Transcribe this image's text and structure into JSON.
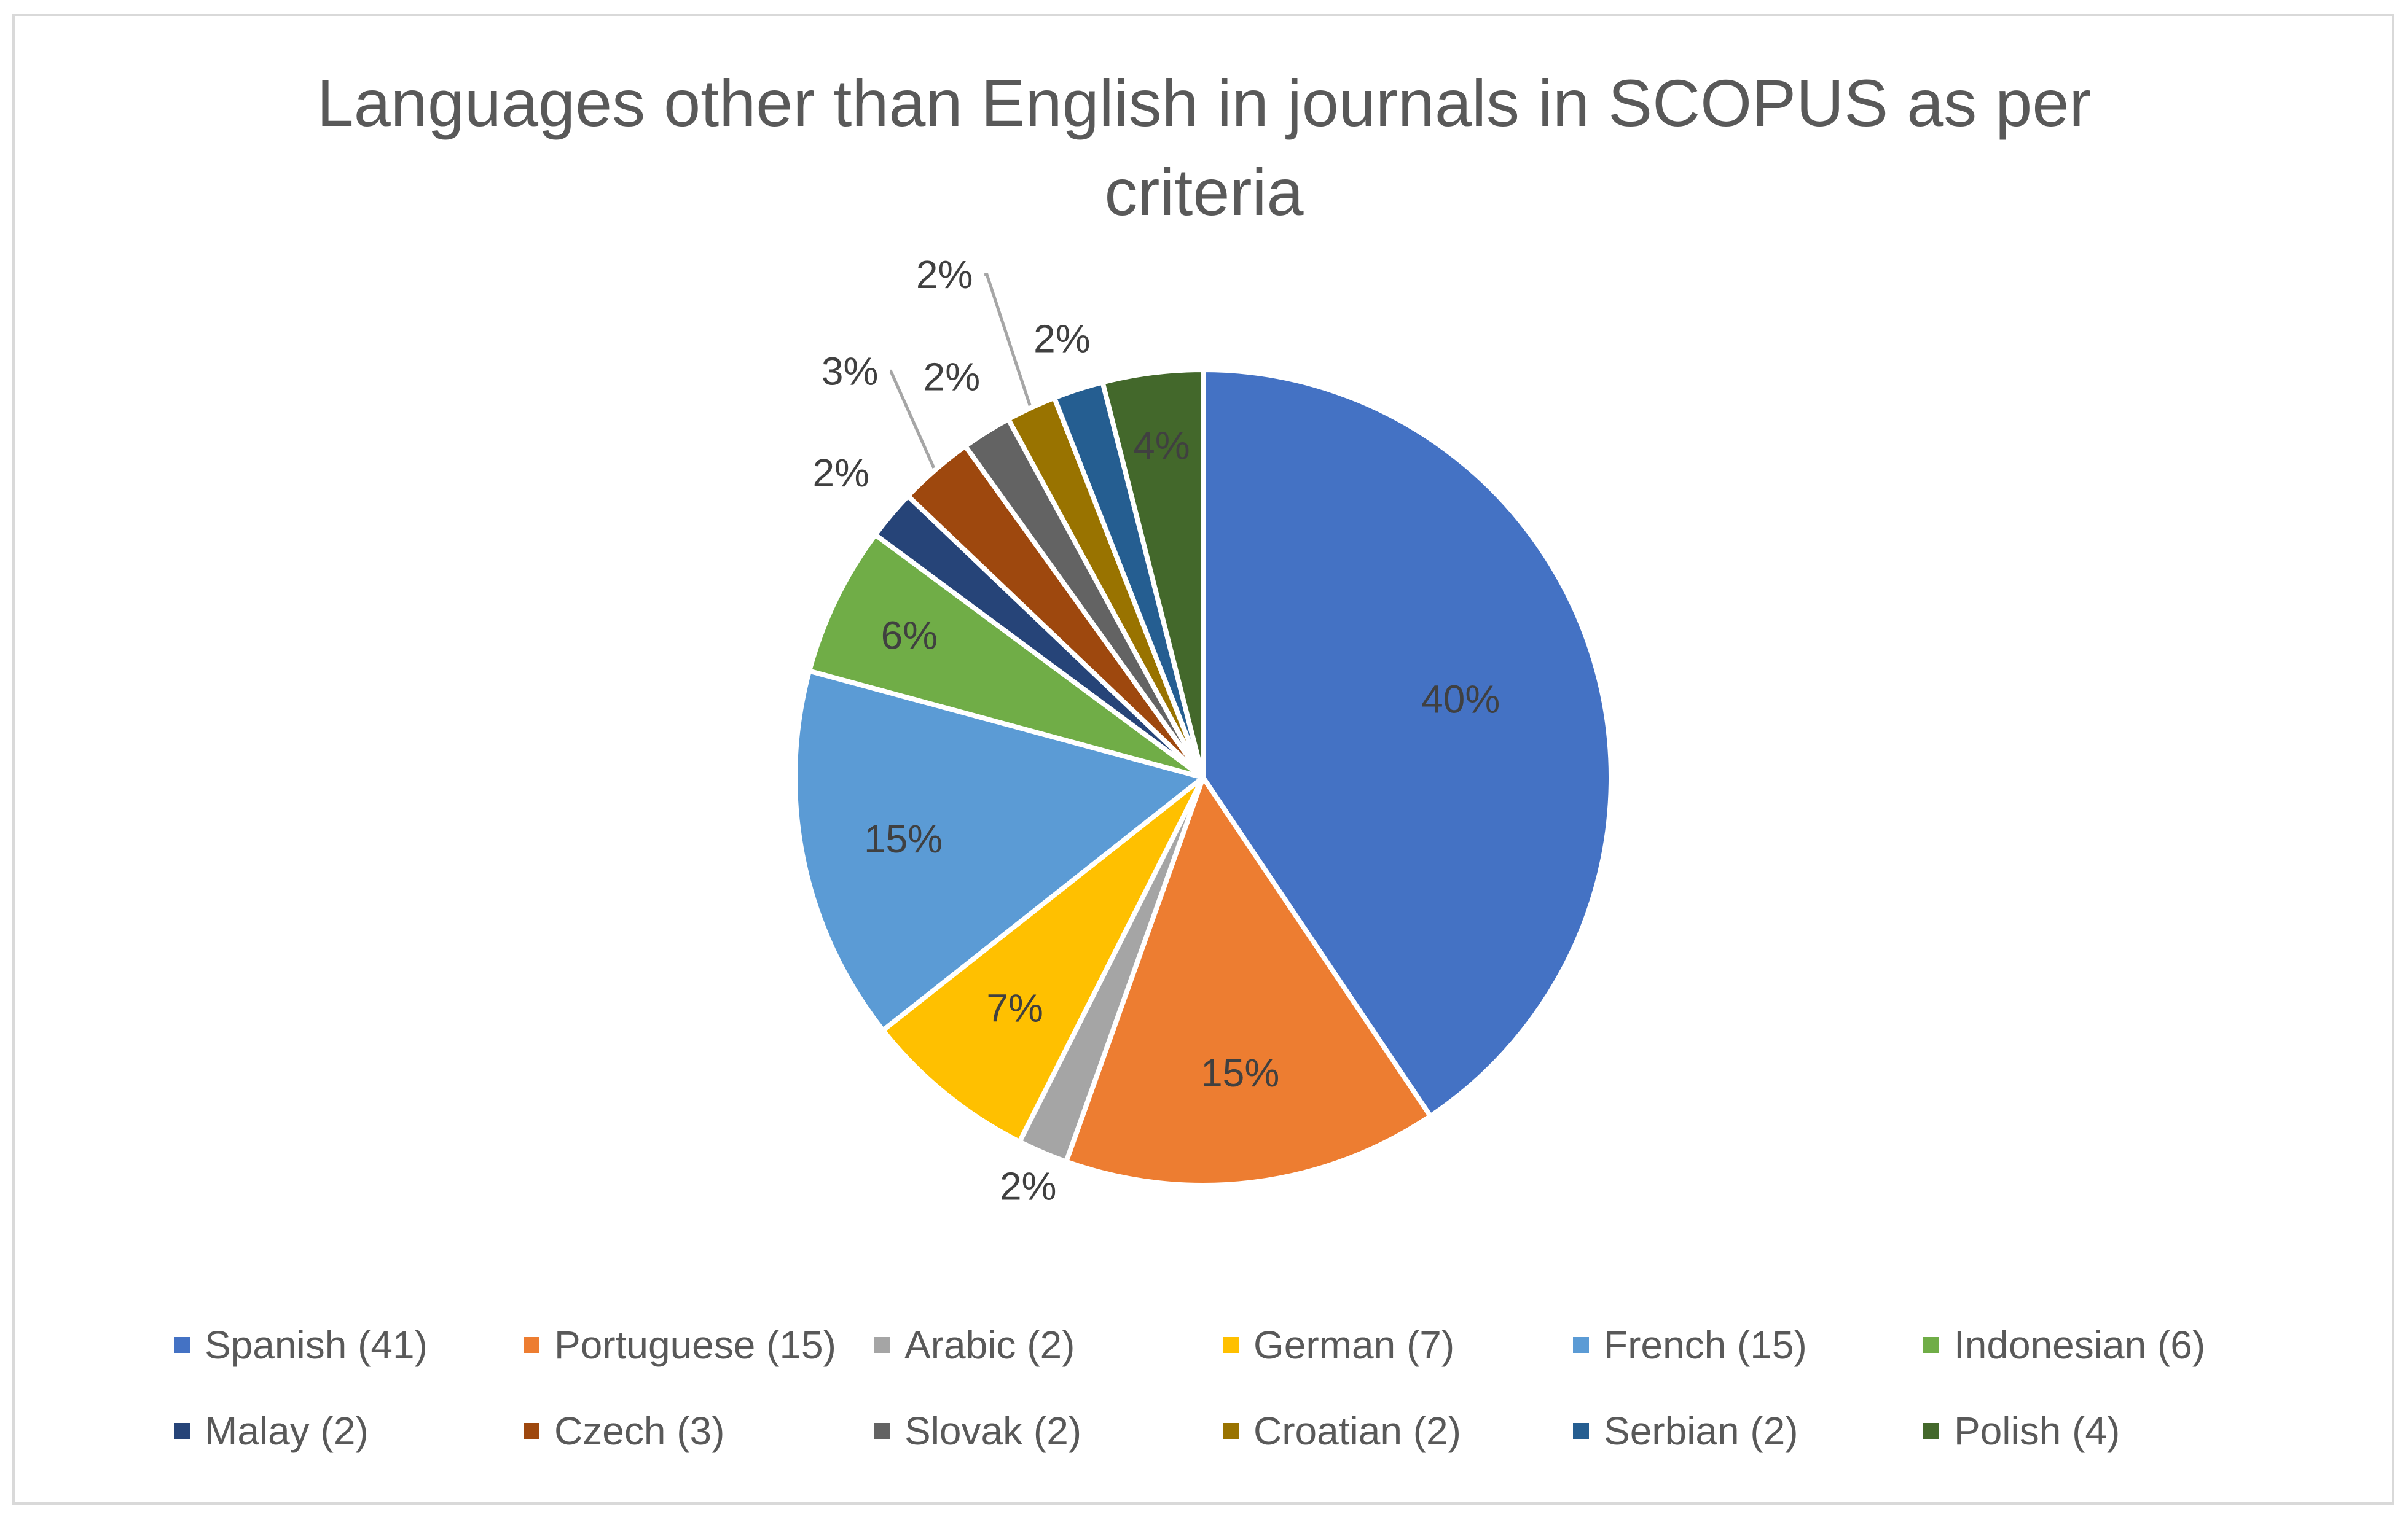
{
  "chart_data": {
    "type": "pie",
    "title": "Languages other than English in journals in SCOPUS as per criteria",
    "title_lines": [
      "Languages other than English in journals in SCOPUS as per",
      "criteria"
    ],
    "legend_position": "bottom",
    "slices": [
      {
        "name": "Spanish (41)",
        "value": 41,
        "label": "40%",
        "color": "#4472C4"
      },
      {
        "name": "Portuguese (15)",
        "value": 15,
        "label": "15%",
        "color": "#ED7D31"
      },
      {
        "name": "Arabic (2)",
        "value": 2,
        "label": "2%",
        "color": "#A5A5A5"
      },
      {
        "name": "German (7)",
        "value": 7,
        "label": "7%",
        "color": "#FFC000"
      },
      {
        "name": "French (15)",
        "value": 15,
        "label": "15%",
        "color": "#5B9BD5"
      },
      {
        "name": "Indonesian (6)",
        "value": 6,
        "label": "6%",
        "color": "#70AD47"
      },
      {
        "name": "Malay (2)",
        "value": 2,
        "label": "2%",
        "color": "#264478"
      },
      {
        "name": "Czech (3)",
        "value": 3,
        "label": "3%",
        "color": "#9E480E"
      },
      {
        "name": "Slovak (2)",
        "value": 2,
        "label": "2%",
        "color": "#636363"
      },
      {
        "name": "Croatian (2)",
        "value": 2,
        "label": "2%",
        "color": "#997300"
      },
      {
        "name": "Serbian (2)",
        "value": 2,
        "label": "2%",
        "color": "#255E91"
      },
      {
        "name": "Polish (4)",
        "value": 4,
        "label": "4%",
        "color": "#43682B"
      }
    ]
  }
}
